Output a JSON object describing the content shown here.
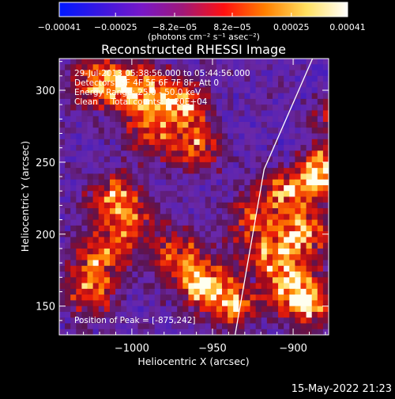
{
  "chart_data": {
    "type": "heatmap",
    "title": "Reconstructed RHESSI Image",
    "xlabel": "Heliocentric X (arcsec)",
    "ylabel": "Heliocentric Y (arcsec)",
    "xlim": [
      -1045,
      -878
    ],
    "ylim": [
      130,
      322
    ],
    "x_ticks": [
      -1000,
      -950,
      -900
    ],
    "x_tick_labels": [
      "−1000",
      "−950",
      "−900"
    ],
    "y_ticks": [
      150,
      200,
      250,
      300
    ],
    "y_tick_labels": [
      "150",
      "200",
      "250",
      "300"
    ],
    "colorbar": {
      "min": -0.00041,
      "max": 0.00041,
      "ticks": [
        -0.00041,
        -0.00025,
        -8.2e-05,
        8.2e-05,
        0.00025,
        0.00041
      ],
      "tick_labels": [
        "−0.00041",
        "−0.00025",
        "−8.2e−05",
        "8.2e−05",
        "0.00025",
        "0.00041"
      ],
      "unit_label": "(photons cm⁻² s⁻¹ asec⁻²)",
      "colors": [
        "#0018ff",
        "#3a18e0",
        "#7818c8",
        "#a01878",
        "#ff1010",
        "#ff8000",
        "#ffe060",
        "#ffffff"
      ]
    },
    "annotations": [
      "29-Jul-2013 05:38:56.000 to 05:44:56.000",
      "Detectors: 3F 4F 5F 6F 7F 8F, Att 0",
      "Energy Range: 25.0 - 50.0 keV",
      "Clean     Total counts: 1.20E+04"
    ],
    "peak_label": "Position of Peak = [-875,242]",
    "peak_position": [
      -875,
      242
    ],
    "limb_line": [
      [
        -936,
        130
      ],
      [
        -918,
        245
      ],
      [
        -888,
        322
      ]
    ],
    "intensity_features": [
      {
        "x": -1020,
        "y": 305,
        "intensity": 0.9
      },
      {
        "x": -995,
        "y": 300,
        "intensity": 0.85
      },
      {
        "x": -970,
        "y": 290,
        "intensity": 0.8
      },
      {
        "x": -960,
        "y": 260,
        "intensity": 0.6
      },
      {
        "x": -990,
        "y": 270,
        "intensity": 0.55
      },
      {
        "x": -1010,
        "y": 225,
        "intensity": 0.75
      },
      {
        "x": -1000,
        "y": 205,
        "intensity": 0.5
      },
      {
        "x": -1020,
        "y": 185,
        "intensity": 0.7
      },
      {
        "x": -970,
        "y": 185,
        "intensity": 0.65
      },
      {
        "x": -955,
        "y": 165,
        "intensity": 0.85
      },
      {
        "x": -935,
        "y": 150,
        "intensity": 0.75
      },
      {
        "x": -1025,
        "y": 160,
        "intensity": 0.6
      },
      {
        "x": -905,
        "y": 230,
        "intensity": 0.8
      },
      {
        "x": -882,
        "y": 243,
        "intensity": 1.0
      },
      {
        "x": -895,
        "y": 200,
        "intensity": 0.8
      },
      {
        "x": -915,
        "y": 185,
        "intensity": 0.7
      },
      {
        "x": -900,
        "y": 165,
        "intensity": 0.75
      },
      {
        "x": -890,
        "y": 150,
        "intensity": 0.65
      },
      {
        "x": -925,
        "y": 210,
        "intensity": 0.55
      },
      {
        "x": -880,
        "y": 285,
        "intensity": 0.4
      }
    ],
    "grid": false
  },
  "timestamp": "15-May-2022 21:23"
}
